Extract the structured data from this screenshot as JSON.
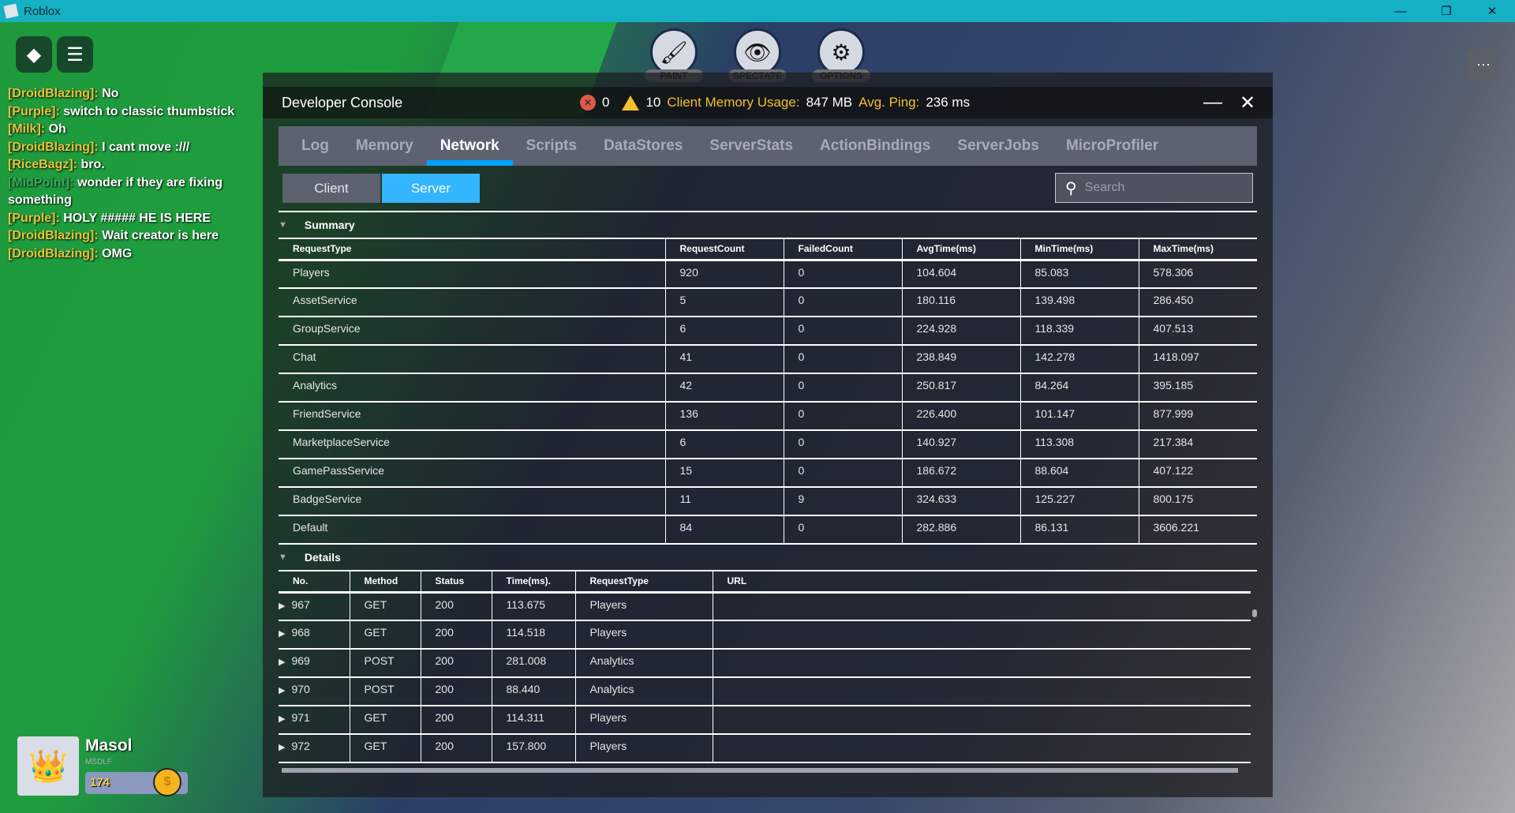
{
  "window": {
    "title": "Roblox",
    "minimize": "—",
    "restore": "❐",
    "close": "✕"
  },
  "game": {
    "chat": [
      {
        "name": "[DroidBlazing]:",
        "msg": "No"
      },
      {
        "name": "[Purple]:",
        "msg": "switch to classic thumbstick"
      },
      {
        "name": "[Milk]:",
        "msg": "Oh"
      },
      {
        "name": "[DroidBlazing]:",
        "msg": "I cant move :///"
      },
      {
        "name": "[RiceBagz]:",
        "msg": "bro."
      },
      {
        "name": "[MidPoint]:",
        "msg": "wonder if they are fixing something"
      },
      {
        "name": "[Purple]:",
        "msg": "HOLY ##### HE IS HERE"
      },
      {
        "name": "[DroidBlazing]:",
        "msg": "Wait creator is here"
      },
      {
        "name": "[DroidBlazing]:",
        "msg": "OMG"
      }
    ],
    "tools": [
      {
        "label": "PAINT",
        "icon": "paintbrush-icon",
        "glyph": "🖌"
      },
      {
        "label": "SPECTATE",
        "icon": "eye-icon",
        "glyph": "👁"
      },
      {
        "label": "OPTIONS",
        "icon": "gear-icon",
        "glyph": "⚙"
      }
    ],
    "player": {
      "name": "Masol",
      "sub": "MSDLF",
      "coins": "174",
      "coin_glyph": "$"
    }
  },
  "console": {
    "title": "Developer Console",
    "error_count": "0",
    "warning_count": "10",
    "memory_label": "Client Memory Usage:",
    "memory_value": "847 MB",
    "ping_label": "Avg. Ping:",
    "ping_value": "236 ms",
    "tabs": [
      "Log",
      "Memory",
      "Network",
      "Scripts",
      "DataStores",
      "ServerStats",
      "ActionBindings",
      "ServerJobs",
      "MicroProfiler"
    ],
    "active_tab": "Network",
    "client_label": "Client",
    "server_label": "Server",
    "search_placeholder": "Search",
    "summary": {
      "title": "Summary",
      "columns": [
        "RequestType",
        "RequestCount",
        "FailedCount",
        "AvgTime(ms)",
        "MinTime(ms)",
        "MaxTime(ms)"
      ],
      "rows": [
        [
          "Players",
          "920",
          "0",
          "104.604",
          "85.083",
          "578.306"
        ],
        [
          "AssetService",
          "5",
          "0",
          "180.116",
          "139.498",
          "286.450"
        ],
        [
          "GroupService",
          "6",
          "0",
          "224.928",
          "118.339",
          "407.513"
        ],
        [
          "Chat",
          "41",
          "0",
          "238.849",
          "142.278",
          "1418.097"
        ],
        [
          "Analytics",
          "42",
          "0",
          "250.817",
          "84.264",
          "395.185"
        ],
        [
          "FriendService",
          "136",
          "0",
          "226.400",
          "101.147",
          "877.999"
        ],
        [
          "MarketplaceService",
          "6",
          "0",
          "140.927",
          "113.308",
          "217.384"
        ],
        [
          "GamePassService",
          "15",
          "0",
          "186.672",
          "88.604",
          "407.122"
        ],
        [
          "BadgeService",
          "11",
          "9",
          "324.633",
          "125.227",
          "800.175"
        ],
        [
          "Default",
          "84",
          "0",
          "282.886",
          "86.131",
          "3606.221"
        ]
      ]
    },
    "details": {
      "title": "Details",
      "columns": [
        "No.",
        "Method",
        "Status",
        "Time(ms).",
        "RequestType",
        "URL"
      ],
      "rows": [
        [
          "967",
          "GET",
          "200",
          "113.675",
          "Players",
          ""
        ],
        [
          "968",
          "GET",
          "200",
          "114.518",
          "Players",
          ""
        ],
        [
          "969",
          "POST",
          "200",
          "281.008",
          "Analytics",
          ""
        ],
        [
          "970",
          "POST",
          "200",
          "88.440",
          "Analytics",
          ""
        ],
        [
          "971",
          "GET",
          "200",
          "114.311",
          "Players",
          ""
        ],
        [
          "972",
          "GET",
          "200",
          "157.800",
          "Players",
          ""
        ]
      ]
    }
  }
}
